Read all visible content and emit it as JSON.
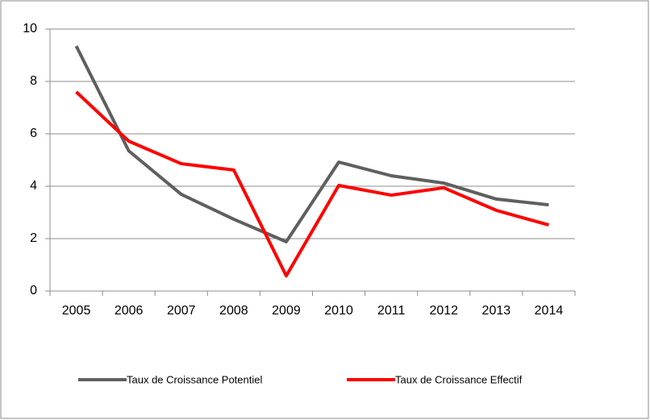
{
  "chart_data": {
    "type": "line",
    "categories": [
      "2005",
      "2006",
      "2007",
      "2008",
      "2009",
      "2010",
      "2011",
      "2012",
      "2013",
      "2014"
    ],
    "series": [
      {
        "name": "Taux de Croissance Potentiel",
        "color": "#5f5f5f",
        "values": [
          9.35,
          5.35,
          3.69,
          2.74,
          1.88,
          4.92,
          4.4,
          4.12,
          3.51,
          3.29
        ]
      },
      {
        "name": "Taux de Croissance Effectif",
        "color": "#ff0000",
        "values": [
          7.6,
          5.72,
          4.86,
          4.62,
          0.58,
          4.03,
          3.66,
          3.94,
          3.08,
          2.52
        ]
      }
    ],
    "ylim": [
      0,
      10
    ],
    "yticks": [
      0,
      2,
      4,
      6,
      8,
      10
    ],
    "grid": true,
    "legend": "bottom"
  }
}
